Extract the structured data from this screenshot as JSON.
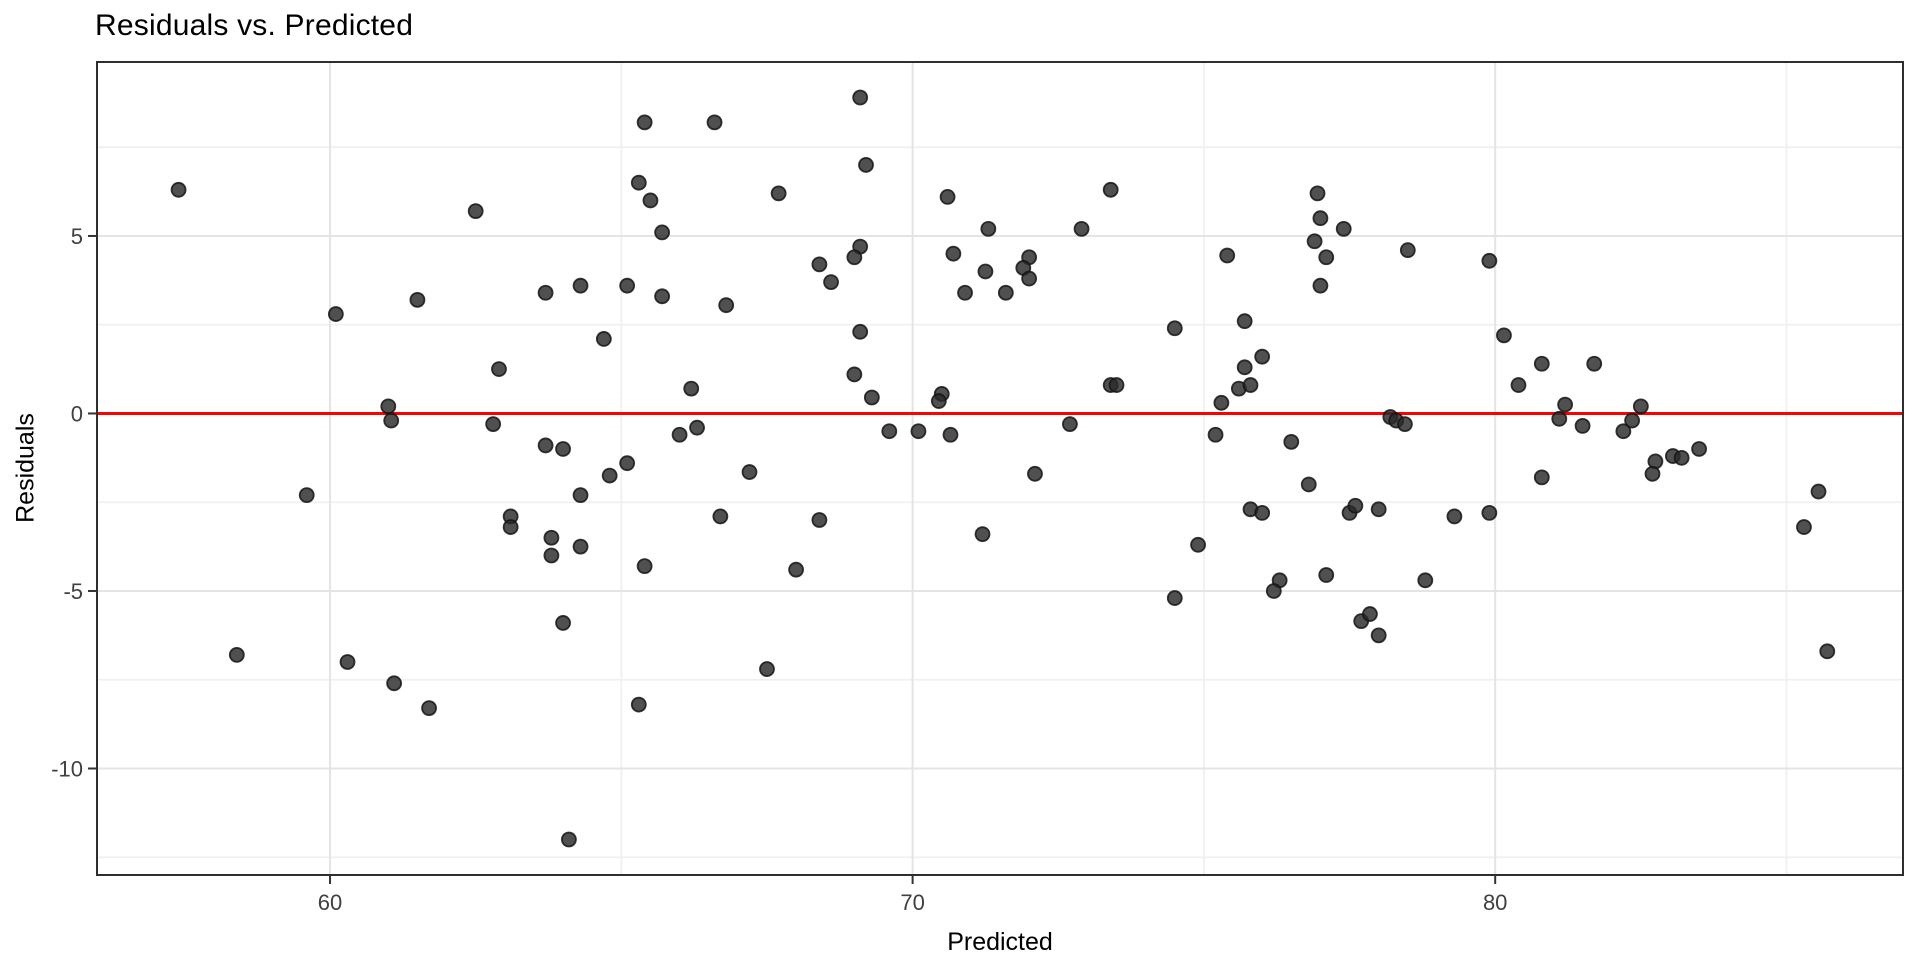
{
  "chart_data": {
    "type": "scatter",
    "title": "Residuals vs. Predicted",
    "xlabel": "Predicted",
    "ylabel": "Residuals",
    "xlim": [
      56.0,
      87.0
    ],
    "ylim": [
      -13.0,
      9.9
    ],
    "x_ticks": [
      60,
      70,
      80
    ],
    "x_tick_labels": [
      "60",
      "70",
      "80"
    ],
    "x_minor_ticks": [
      65,
      75,
      85
    ],
    "y_ticks": [
      5,
      0,
      -5,
      -10
    ],
    "y_tick_labels": [
      "5",
      "0",
      "-5",
      "-10"
    ],
    "y_minor_ticks": [
      7.5,
      2.5,
      -2.5,
      -7.5,
      -12.5
    ],
    "grid": true,
    "legend": false,
    "ref_line": {
      "y": 0,
      "color": "#ff0000"
    },
    "colors": {
      "point_fill": "#2a2a2a",
      "point_stroke": "#151515",
      "grid_major": "#e4e4e4",
      "grid_minor": "#f0f0f0",
      "panel_border": "#2e2e2e",
      "tick_mark": "#333333",
      "tick_label": "#404040"
    },
    "points": [
      [
        57.4,
        6.3
      ],
      [
        62.5,
        5.7
      ],
      [
        61.5,
        3.2
      ],
      [
        60.1,
        2.8
      ],
      [
        62.9,
        1.25
      ],
      [
        61.0,
        0.2
      ],
      [
        61.05,
        -0.2
      ],
      [
        62.8,
        -0.3
      ],
      [
        63.7,
        -0.9
      ],
      [
        69.1,
        8.9
      ],
      [
        65.4,
        8.2
      ],
      [
        66.6,
        8.2
      ],
      [
        69.2,
        7.0
      ],
      [
        65.3,
        6.5
      ],
      [
        65.5,
        6.0
      ],
      [
        67.7,
        6.2
      ],
      [
        70.6,
        6.1
      ],
      [
        65.7,
        5.1
      ],
      [
        71.3,
        5.2
      ],
      [
        69.1,
        4.7
      ],
      [
        69.0,
        4.4
      ],
      [
        70.7,
        4.5
      ],
      [
        68.4,
        4.2
      ],
      [
        71.25,
        4.0
      ],
      [
        68.6,
        3.7
      ],
      [
        64.3,
        3.6
      ],
      [
        65.1,
        3.6
      ],
      [
        63.7,
        3.4
      ],
      [
        70.9,
        3.4
      ],
      [
        65.7,
        3.3
      ],
      [
        66.8,
        3.05
      ],
      [
        69.1,
        2.3
      ],
      [
        64.7,
        2.1
      ],
      [
        69.0,
        1.1
      ],
      [
        66.2,
        0.7
      ],
      [
        69.3,
        0.45
      ],
      [
        70.5,
        0.55
      ],
      [
        70.45,
        0.35
      ],
      [
        66.3,
        -0.4
      ],
      [
        66.0,
        -0.6
      ],
      [
        69.6,
        -0.5
      ],
      [
        70.1,
        -0.5
      ],
      [
        70.65,
        -0.6
      ],
      [
        64.0,
        -1.0
      ],
      [
        65.1,
        -1.4
      ],
      [
        73.4,
        6.3
      ],
      [
        76.95,
        6.2
      ],
      [
        77.0,
        5.5
      ],
      [
        77.4,
        5.2
      ],
      [
        72.9,
        5.2
      ],
      [
        76.9,
        4.85
      ],
      [
        72.0,
        4.4
      ],
      [
        75.4,
        4.45
      ],
      [
        77.1,
        4.4
      ],
      [
        78.5,
        4.6
      ],
      [
        71.9,
        4.1
      ],
      [
        72.0,
        3.8
      ],
      [
        71.6,
        3.4
      ],
      [
        77.0,
        3.6
      ],
      [
        75.7,
        2.6
      ],
      [
        74.5,
        2.4
      ],
      [
        76.0,
        1.6
      ],
      [
        75.7,
        1.3
      ],
      [
        73.4,
        0.8
      ],
      [
        73.5,
        0.8
      ],
      [
        75.6,
        0.7
      ],
      [
        75.8,
        0.8
      ],
      [
        75.3,
        0.3
      ],
      [
        72.7,
        -0.3
      ],
      [
        78.2,
        -0.1
      ],
      [
        78.3,
        -0.2
      ],
      [
        78.45,
        -0.3
      ],
      [
        75.2,
        -0.6
      ],
      [
        76.5,
        -0.8
      ],
      [
        79.9,
        4.3
      ],
      [
        80.15,
        2.2
      ],
      [
        80.8,
        1.4
      ],
      [
        81.7,
        1.4
      ],
      [
        80.4,
        0.8
      ],
      [
        81.2,
        0.25
      ],
      [
        82.5,
        0.2
      ],
      [
        81.1,
        -0.15
      ],
      [
        82.35,
        -0.2
      ],
      [
        81.5,
        -0.35
      ],
      [
        82.2,
        -0.5
      ],
      [
        83.5,
        -1.0
      ],
      [
        83.05,
        -1.2
      ],
      [
        83.2,
        -1.25
      ],
      [
        82.75,
        -1.35
      ],
      [
        82.7,
        -1.7
      ],
      [
        80.8,
        -1.8
      ],
      [
        85.55,
        -2.2
      ],
      [
        85.3,
        -3.2
      ],
      [
        85.7,
        -6.7
      ],
      [
        59.6,
        -2.3
      ],
      [
        63.1,
        -2.9
      ],
      [
        63.1,
        -3.2
      ],
      [
        58.4,
        -6.8
      ],
      [
        60.3,
        -7.0
      ],
      [
        61.1,
        -7.6
      ],
      [
        61.7,
        -8.3
      ],
      [
        64.8,
        -1.75
      ],
      [
        64.3,
        -2.3
      ],
      [
        67.2,
        -1.65
      ],
      [
        66.7,
        -2.9
      ],
      [
        68.4,
        -3.0
      ],
      [
        71.2,
        -3.4
      ],
      [
        63.8,
        -3.5
      ],
      [
        63.8,
        -4.0
      ],
      [
        64.3,
        -3.75
      ],
      [
        65.4,
        -4.3
      ],
      [
        68.0,
        -4.4
      ],
      [
        64.0,
        -5.9
      ],
      [
        67.5,
        -7.2
      ],
      [
        65.3,
        -8.2
      ],
      [
        64.1,
        -12.0
      ],
      [
        72.1,
        -1.7
      ],
      [
        76.8,
        -2.0
      ],
      [
        75.8,
        -2.7
      ],
      [
        76.0,
        -2.8
      ],
      [
        77.5,
        -2.8
      ],
      [
        77.6,
        -2.6
      ],
      [
        78.0,
        -2.7
      ],
      [
        79.3,
        -2.9
      ],
      [
        79.9,
        -2.8
      ],
      [
        74.9,
        -3.7
      ],
      [
        76.3,
        -4.7
      ],
      [
        77.1,
        -4.55
      ],
      [
        78.8,
        -4.7
      ],
      [
        76.2,
        -5.0
      ],
      [
        74.5,
        -5.2
      ],
      [
        77.7,
        -5.85
      ],
      [
        77.85,
        -5.65
      ],
      [
        78.0,
        -6.25
      ]
    ]
  }
}
